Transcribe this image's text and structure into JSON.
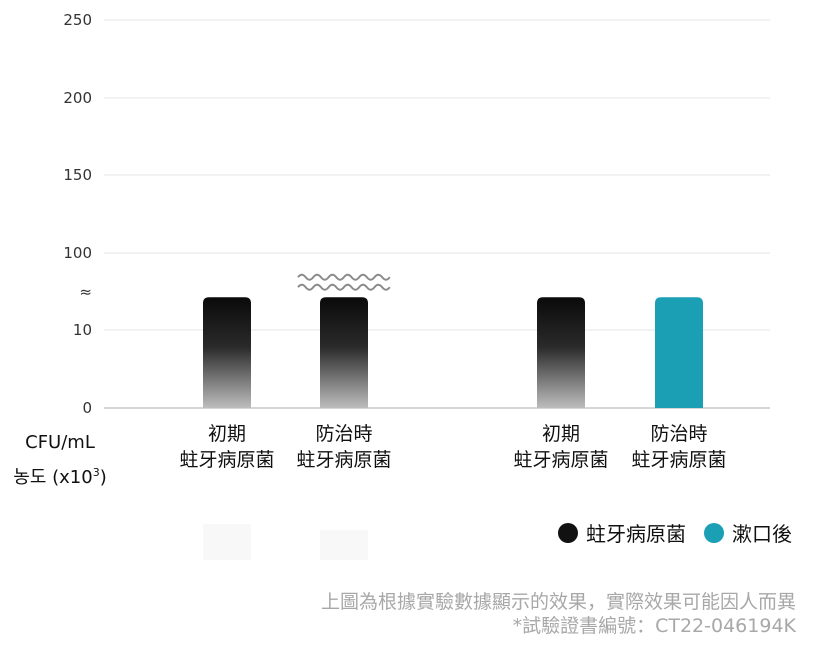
{
  "chart_data": {
    "type": "bar",
    "yticks": [
      "250",
      "200",
      "150",
      "100",
      "≈",
      "10",
      "0"
    ],
    "scale_break": true,
    "unit_label": {
      "line1": "CFU/mL",
      "line2_prefix": "농도 (x10",
      "line2_sup": "3",
      "line2_suffix": ")"
    },
    "groups": [
      {
        "bars": [
          {
            "category_line1": "初期",
            "category_line2": "蛀牙病原菌",
            "series": "蛀牙病原菌",
            "value": 14
          },
          {
            "category_line1": "防治時",
            "category_line2": "蛀牙病原菌",
            "series": "蛀牙病原菌",
            "value": 14,
            "wavy_break": true
          }
        ]
      },
      {
        "bars": [
          {
            "category_line1": "初期",
            "category_line2": "蛀牙病原菌",
            "series": "蛀牙病原菌",
            "value": 14
          },
          {
            "category_line1": "防治時",
            "category_line2": "蛀牙病原菌",
            "series": "漱口後",
            "value": 14
          }
        ]
      }
    ],
    "legend": [
      {
        "name": "蛀牙病原菌",
        "color": "#111111"
      },
      {
        "name": "漱口後",
        "color": "#1a9fb5"
      }
    ],
    "grid": true,
    "legend_position": "bottom-right"
  },
  "footnote": {
    "line1": "上圖為根據實驗數據顯示的效果，實際效果可能因人而異",
    "line2": "*試驗證書編號：CT22-046194K"
  }
}
